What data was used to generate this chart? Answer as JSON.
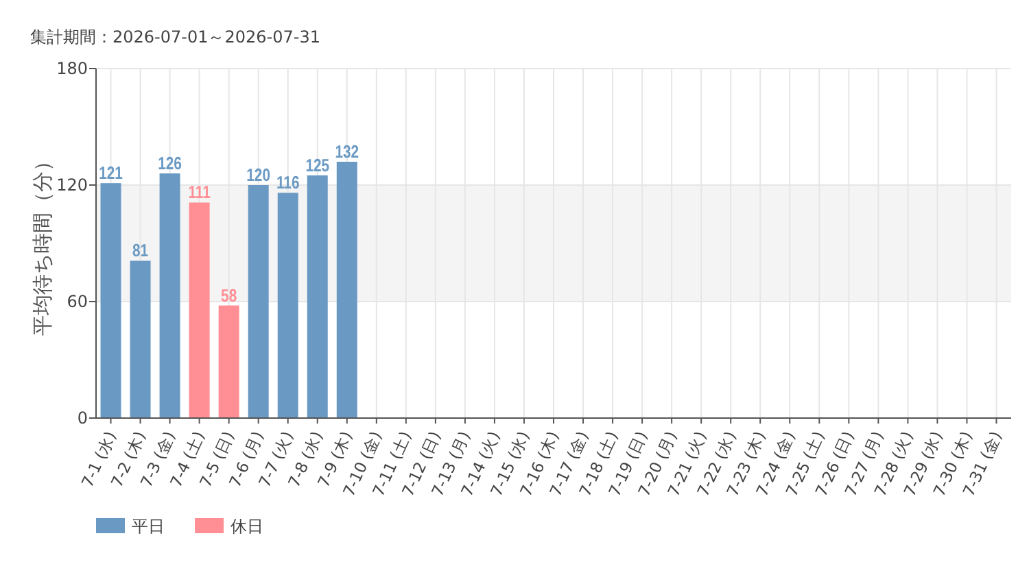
{
  "chart_data": {
    "type": "bar",
    "title": "集計期間：2026-07-01～2026-07-31",
    "ylabel": "平均待ち時間（分）",
    "categories": [
      "7-1 (水)",
      "7-2 (木)",
      "7-3 (金)",
      "7-4 (土)",
      "7-5 (日)",
      "7-6 (月)",
      "7-7 (火)",
      "7-8 (水)",
      "7-9 (木)",
      "7-10 (金)",
      "7-11 (土)",
      "7-12 (日)",
      "7-13 (月)",
      "7-14 (火)",
      "7-15 (水)",
      "7-16 (木)",
      "7-17 (金)",
      "7-18 (土)",
      "7-19 (日)",
      "7-20 (月)",
      "7-21 (火)",
      "7-22 (水)",
      "7-23 (木)",
      "7-24 (金)",
      "7-25 (土)",
      "7-26 (日)",
      "7-27 (月)",
      "7-28 (火)",
      "7-29 (水)",
      "7-30 (木)",
      "7-31 (金)"
    ],
    "series": [
      {
        "name": "平日",
        "color": "#6a9ac4",
        "values": [
          121,
          81,
          126,
          null,
          null,
          120,
          116,
          125,
          132,
          null,
          null,
          null,
          null,
          null,
          null,
          null,
          null,
          null,
          null,
          null,
          null,
          null,
          null,
          null,
          null,
          null,
          null,
          null,
          null,
          null,
          null
        ]
      },
      {
        "name": "休日",
        "color": "#ff8f94",
        "values": [
          null,
          null,
          null,
          111,
          58,
          null,
          null,
          null,
          null,
          null,
          null,
          null,
          null,
          null,
          null,
          null,
          null,
          null,
          null,
          null,
          null,
          null,
          null,
          null,
          null,
          null,
          null,
          null,
          null,
          null,
          null
        ]
      }
    ],
    "ylim": [
      0,
      180
    ],
    "yticks": [
      0,
      60,
      120,
      180
    ],
    "grid": true,
    "bands": [
      {
        "axis": "y",
        "from": 60,
        "to": 120,
        "color": "#f4f4f4"
      }
    ],
    "legend": "bottom left",
    "data_labels": true
  }
}
